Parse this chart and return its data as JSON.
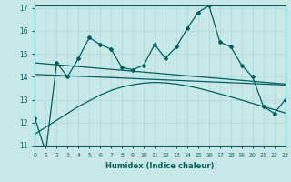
{
  "xlabel": "Humidex (Indice chaleur)",
  "x": [
    0,
    1,
    2,
    3,
    4,
    5,
    6,
    7,
    8,
    9,
    10,
    11,
    12,
    13,
    14,
    15,
    16,
    17,
    18,
    19,
    20,
    21,
    22,
    23
  ],
  "y_main": [
    12.2,
    10.7,
    14.6,
    14.0,
    14.8,
    15.7,
    15.4,
    15.2,
    14.4,
    14.3,
    14.5,
    15.4,
    14.8,
    15.3,
    16.1,
    16.8,
    17.1,
    15.5,
    15.3,
    14.5,
    14.0,
    12.7,
    12.4,
    13.0
  ],
  "y_trend1": [
    14.6,
    14.56,
    14.52,
    14.48,
    14.44,
    14.4,
    14.36,
    14.32,
    14.28,
    14.24,
    14.2,
    14.16,
    14.12,
    14.08,
    14.04,
    14.0,
    13.96,
    13.92,
    13.88,
    13.84,
    13.8,
    13.76,
    13.72,
    13.68
  ],
  "y_trend2": [
    14.1,
    14.08,
    14.06,
    14.04,
    14.02,
    14.0,
    13.98,
    13.96,
    13.94,
    13.92,
    13.9,
    13.88,
    13.86,
    13.84,
    13.82,
    13.8,
    13.78,
    13.76,
    13.74,
    13.72,
    13.7,
    13.68,
    13.66,
    13.64
  ],
  "y_trend3": [
    11.5,
    11.8,
    12.1,
    12.4,
    12.7,
    12.95,
    13.2,
    13.4,
    13.55,
    13.65,
    13.72,
    13.75,
    13.73,
    13.68,
    13.6,
    13.5,
    13.38,
    13.25,
    13.12,
    12.98,
    12.84,
    12.7,
    12.56,
    12.42
  ],
  "line_color": "#006060",
  "bg_color": "#c8e8e8",
  "grid_color": "#b0d4d4",
  "ylim": [
    11,
    17
  ],
  "xlim": [
    0,
    23
  ],
  "yticks": [
    11,
    12,
    13,
    14,
    15,
    16,
    17
  ],
  "xticks": [
    0,
    1,
    2,
    3,
    4,
    5,
    6,
    7,
    8,
    9,
    10,
    11,
    12,
    13,
    14,
    15,
    16,
    17,
    18,
    19,
    20,
    21,
    22,
    23
  ]
}
